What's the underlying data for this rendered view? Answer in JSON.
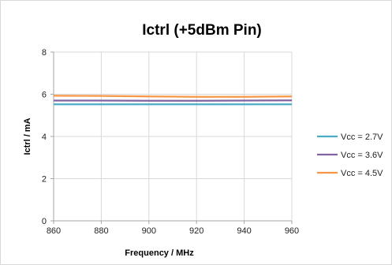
{
  "chart_data": {
    "type": "line",
    "title": "Ictrl (+5dBm Pin)",
    "xlabel": "Frequency / MHz",
    "ylabel": "Ictrl / mA",
    "xlim": [
      860,
      960
    ],
    "ylim": [
      0,
      8
    ],
    "x_ticks": [
      "860",
      "880",
      "900",
      "920",
      "940",
      "960"
    ],
    "y_ticks": [
      "0",
      "2",
      "4",
      "6",
      "8"
    ],
    "grid": true,
    "legend_position": "right",
    "series": [
      {
        "name": "Vcc = 2.7V",
        "color": "#4bacc6",
        "x": [
          860,
          880,
          900,
          920,
          940,
          960
        ],
        "y": [
          5.52,
          5.52,
          5.52,
          5.52,
          5.52,
          5.52
        ]
      },
      {
        "name": "Vcc = 3.6V",
        "color": "#8064a2",
        "x": [
          860,
          880,
          900,
          920,
          940,
          960
        ],
        "y": [
          5.7,
          5.7,
          5.69,
          5.69,
          5.7,
          5.71
        ]
      },
      {
        "name": "Vcc = 4.5V",
        "color": "#f79646",
        "x": [
          860,
          880,
          900,
          920,
          940,
          960
        ],
        "y": [
          5.93,
          5.92,
          5.9,
          5.88,
          5.88,
          5.9
        ]
      }
    ]
  }
}
